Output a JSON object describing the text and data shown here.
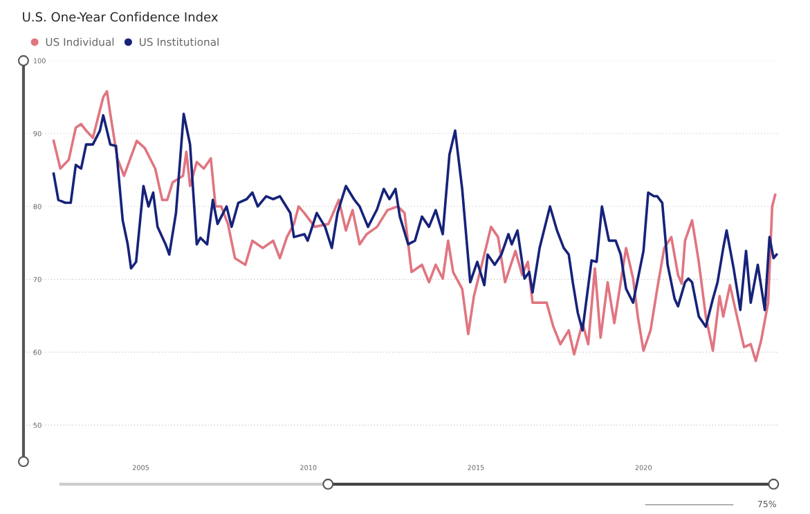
{
  "chart_data": {
    "type": "line",
    "title": "U.S. One-Year Confidence Index",
    "xlim": [
      2001.5,
      2024.05
    ],
    "xticks": [
      2005,
      2010,
      2015,
      2020
    ],
    "ylim": [
      45,
      100
    ],
    "yticks": [
      50,
      60,
      70,
      80,
      90,
      100
    ],
    "grid": "y",
    "legend": "top left",
    "marker": "none",
    "line_style": "solid",
    "annotations": [
      "75%"
    ],
    "series": [
      {
        "name": "US Individual",
        "color": "#e07580",
        "x": [
          2002.4,
          2002.6,
          2002.85,
          2003.06,
          2003.22,
          2003.37,
          2003.57,
          2003.78,
          2003.88,
          2003.99,
          2004.09,
          2004.3,
          2004.5,
          2004.88,
          2005.12,
          2005.43,
          2005.64,
          2005.79,
          2005.95,
          2006.26,
          2006.36,
          2006.47,
          2006.67,
          2006.88,
          2007.09,
          2007.23,
          2007.4,
          2007.6,
          2007.81,
          2008.12,
          2008.33,
          2008.64,
          2008.95,
          2009.15,
          2009.36,
          2009.57,
          2009.71,
          2009.88,
          2010.19,
          2010.6,
          2010.91,
          2011.12,
          2011.32,
          2011.53,
          2011.74,
          2012.05,
          2012.36,
          2012.67,
          2012.87,
          2013.08,
          2013.39,
          2013.6,
          2013.8,
          2014.01,
          2014.17,
          2014.32,
          2014.59,
          2014.77,
          2014.94,
          2015.25,
          2015.45,
          2015.66,
          2015.87,
          2016.18,
          2016.38,
          2016.55,
          2016.69,
          2017.11,
          2017.31,
          2017.52,
          2017.77,
          2017.93,
          2018.18,
          2018.35,
          2018.55,
          2018.72,
          2018.93,
          2019.13,
          2019.32,
          2019.48,
          2019.69,
          2019.83,
          2020.0,
          2020.21,
          2020.41,
          2020.62,
          2020.83,
          2021.03,
          2021.14,
          2021.24,
          2021.45,
          2021.65,
          2021.86,
          2022.07,
          2022.27,
          2022.38,
          2022.58,
          2022.79,
          2023.0,
          2023.2,
          2023.35,
          2023.51,
          2023.72,
          2023.84,
          2023.93
        ],
        "values": [
          89,
          85.2,
          86.4,
          90.8,
          91.3,
          90.4,
          89.4,
          93.2,
          95,
          95.8,
          92.7,
          86.6,
          84.2,
          89,
          88,
          85.2,
          80.9,
          80.9,
          83.3,
          84.2,
          87.5,
          82.8,
          86.1,
          85.2,
          86.6,
          80,
          80,
          77.6,
          72.9,
          72,
          75.3,
          74.3,
          75.3,
          72.9,
          75.8,
          77.6,
          80,
          79.1,
          77.2,
          77.6,
          80.9,
          76.7,
          79.5,
          74.8,
          76.2,
          77.2,
          79.5,
          80,
          79.1,
          71,
          72,
          69.6,
          72,
          70.1,
          75.3,
          71,
          68.7,
          62.5,
          67.7,
          73.4,
          77.2,
          75.8,
          69.6,
          73.9,
          70.6,
          72.4,
          66.8,
          66.8,
          63.5,
          61.1,
          63,
          59.7,
          64,
          61.1,
          71.5,
          62,
          69.6,
          64,
          69.6,
          74.3,
          70.1,
          64.9,
          60.2,
          63,
          68.7,
          74.3,
          75.8,
          70.6,
          69.4,
          75.3,
          78.1,
          72.4,
          64.9,
          60.2,
          67.7,
          64.9,
          69.2,
          64.9,
          60.7,
          61.1,
          58.8,
          61.6,
          66.8,
          80,
          81.6
        ]
      },
      {
        "name": "US Institutional",
        "color": "#16237a",
        "x": [
          2002.4,
          2002.54,
          2002.75,
          2002.91,
          2003.06,
          2003.22,
          2003.37,
          2003.57,
          2003.78,
          2003.88,
          2004.09,
          2004.26,
          2004.46,
          2004.61,
          2004.71,
          2004.86,
          2005.08,
          2005.23,
          2005.37,
          2005.5,
          2005.74,
          2005.85,
          2006.05,
          2006.28,
          2006.47,
          2006.67,
          2006.78,
          2006.98,
          2007.15,
          2007.29,
          2007.56,
          2007.71,
          2007.91,
          2008.16,
          2008.33,
          2008.49,
          2008.74,
          2008.95,
          2009.15,
          2009.46,
          2009.57,
          2009.88,
          2009.98,
          2010.25,
          2010.5,
          2010.7,
          2010.87,
          2011.12,
          2011.36,
          2011.53,
          2011.78,
          2012.05,
          2012.25,
          2012.42,
          2012.6,
          2012.73,
          2012.98,
          2013.18,
          2013.39,
          2013.6,
          2013.8,
          2014.01,
          2014.21,
          2014.38,
          2014.59,
          2014.83,
          2015.04,
          2015.25,
          2015.35,
          2015.56,
          2015.76,
          2015.97,
          2016.07,
          2016.24,
          2016.45,
          2016.59,
          2016.69,
          2016.9,
          2017.21,
          2017.42,
          2017.62,
          2017.77,
          2017.89,
          2018.04,
          2018.18,
          2018.45,
          2018.6,
          2018.76,
          2018.97,
          2019.17,
          2019.32,
          2019.48,
          2019.69,
          2020.0,
          2020.14,
          2020.31,
          2020.41,
          2020.56,
          2020.72,
          2020.93,
          2021.03,
          2021.24,
          2021.34,
          2021.45,
          2021.65,
          2021.86,
          2022.07,
          2022.21,
          2022.38,
          2022.48,
          2022.69,
          2022.89,
          2023.06,
          2023.2,
          2023.41,
          2023.62,
          2023.76,
          2023.88,
          2023.97
        ],
        "values": [
          84.5,
          80.9,
          80.5,
          80.5,
          85.7,
          85.2,
          88.5,
          88.5,
          90.4,
          92.5,
          88.5,
          88.3,
          78.1,
          74.8,
          71.5,
          72.4,
          82.8,
          80,
          81.9,
          77.2,
          74.8,
          73.4,
          79.1,
          92.7,
          88.5,
          74.8,
          75.7,
          74.8,
          80.9,
          77.6,
          80,
          77.2,
          80.5,
          81,
          81.9,
          80,
          81.4,
          81,
          81.4,
          79.1,
          75.8,
          76.2,
          75.3,
          79.1,
          77.2,
          74.3,
          79.1,
          82.8,
          81,
          80,
          77.2,
          79.6,
          82.4,
          81,
          82.4,
          78.6,
          74.8,
          75.3,
          78.6,
          77.2,
          79.5,
          76.2,
          87.1,
          90.4,
          82.4,
          69.6,
          72.4,
          69.2,
          73.4,
          72,
          73.4,
          76.2,
          74.8,
          76.7,
          70.1,
          71,
          68.2,
          74.3,
          80,
          76.7,
          74.3,
          73.4,
          69.6,
          65.4,
          63,
          72.6,
          72.4,
          80,
          75.3,
          75.3,
          73.4,
          68.7,
          66.8,
          73.9,
          81.9,
          81.4,
          81.4,
          80.5,
          72,
          67.3,
          66.3,
          69.6,
          70.1,
          69.6,
          64.9,
          63.5,
          67.3,
          69.6,
          74.3,
          76.7,
          71.5,
          65.8,
          73.9,
          66.8,
          72,
          65.8,
          75.8,
          72.9,
          73.4
        ]
      }
    ]
  }
}
